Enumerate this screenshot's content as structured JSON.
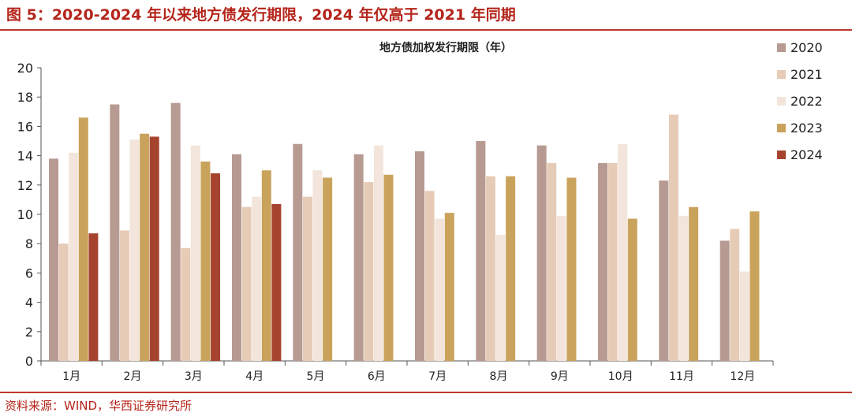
{
  "figure_title": "图 5：2020-2024 年以来地方债发行期限，2024 年仅高于 2021 年同期",
  "source": "资料来源：WIND，华西证券研究所",
  "chart_data": {
    "type": "bar",
    "title": "地方债加权发行期限（年）",
    "categories": [
      "1月",
      "2月",
      "3月",
      "4月",
      "5月",
      "6月",
      "7月",
      "8月",
      "9月",
      "10月",
      "11月",
      "12月"
    ],
    "ylim": [
      0,
      20
    ],
    "yticks": [
      0,
      2,
      4,
      6,
      8,
      10,
      12,
      14,
      16,
      18,
      20
    ],
    "grid": false,
    "legend_position": "right",
    "series": [
      {
        "name": "2020",
        "color": "#b79a92",
        "values": [
          13.8,
          17.5,
          17.6,
          14.1,
          14.8,
          14.1,
          14.3,
          15.0,
          14.7,
          13.5,
          12.3,
          8.2
        ]
      },
      {
        "name": "2021",
        "color": "#e6cbb6",
        "values": [
          8.0,
          8.9,
          7.7,
          10.5,
          11.2,
          12.2,
          11.6,
          12.6,
          13.5,
          13.5,
          16.8,
          9.0
        ]
      },
      {
        "name": "2022",
        "color": "#f3e5db",
        "values": [
          14.2,
          15.1,
          14.7,
          11.2,
          13.0,
          14.7,
          9.7,
          8.6,
          9.9,
          14.8,
          9.9,
          6.1
        ]
      },
      {
        "name": "2023",
        "color": "#c9a35c",
        "values": [
          16.6,
          15.5,
          13.6,
          13.0,
          12.5,
          12.7,
          10.1,
          12.6,
          12.5,
          9.7,
          10.5,
          10.2
        ]
      },
      {
        "name": "2024",
        "color": "#a6432f",
        "values": [
          8.7,
          15.3,
          12.8,
          10.7,
          null,
          null,
          null,
          null,
          null,
          null,
          null,
          null
        ]
      }
    ]
  }
}
